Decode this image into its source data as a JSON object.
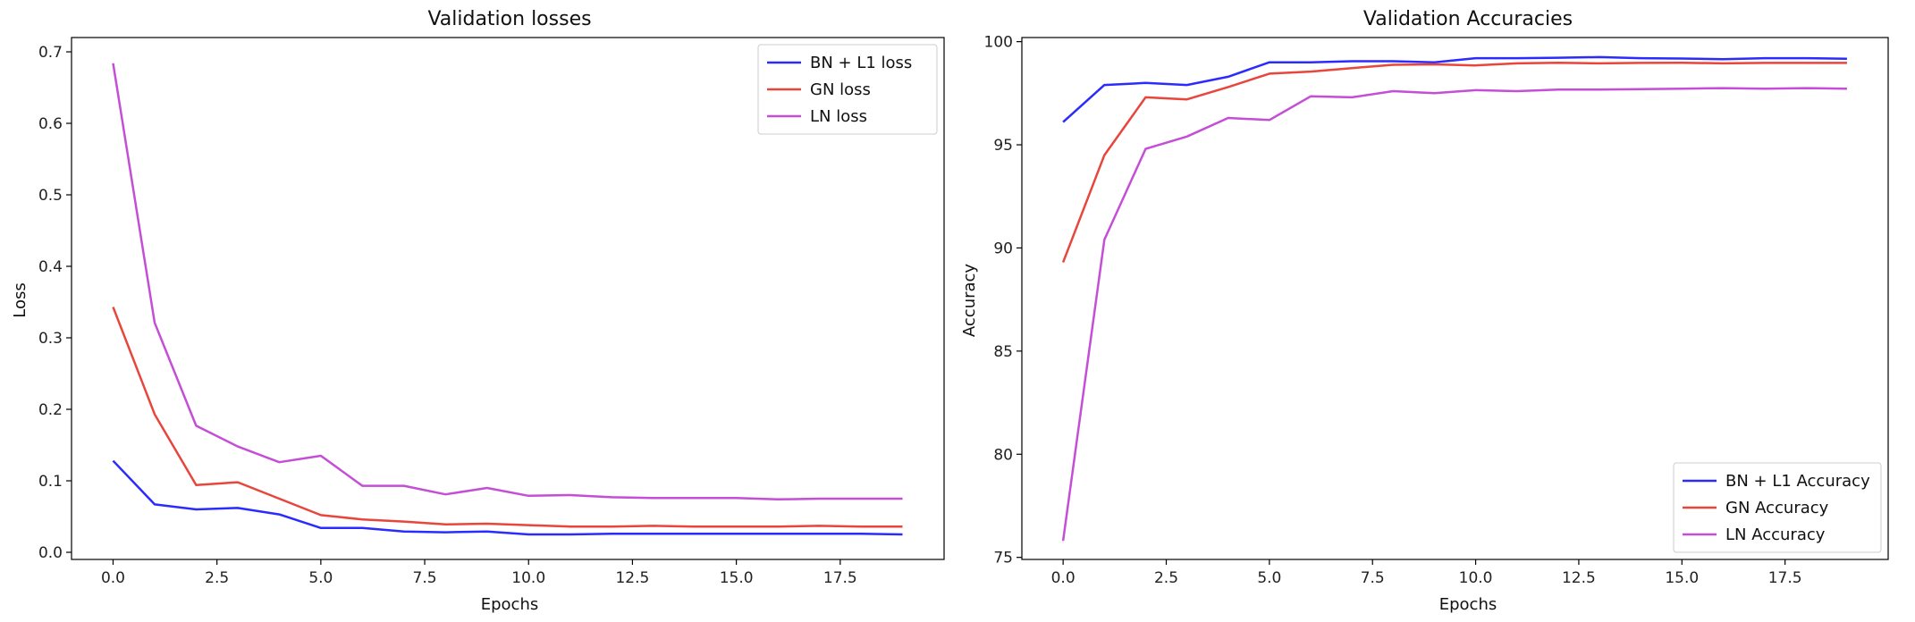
{
  "chart_data": [
    {
      "type": "line",
      "title": "Validation losses",
      "xlabel": "Epochs",
      "ylabel": "Loss",
      "xlim": [
        -1,
        20
      ],
      "ylim": [
        -0.01,
        0.72
      ],
      "xticks": [
        0,
        2.5,
        5,
        7.5,
        10,
        12.5,
        15,
        17.5
      ],
      "xtick_labels": [
        "0.0",
        "2.5",
        "5.0",
        "7.5",
        "10.0",
        "12.5",
        "15.0",
        "17.5"
      ],
      "yticks": [
        0.0,
        0.1,
        0.2,
        0.3,
        0.4,
        0.5,
        0.6,
        0.7
      ],
      "ytick_labels": [
        "0.0",
        "0.1",
        "0.2",
        "0.3",
        "0.4",
        "0.5",
        "0.6",
        "0.7"
      ],
      "legend_position": "top-right",
      "grid": false,
      "x": [
        0,
        1,
        2,
        3,
        4,
        5,
        6,
        7,
        8,
        9,
        10,
        11,
        12,
        13,
        14,
        15,
        16,
        17,
        18,
        19
      ],
      "series": [
        {
          "name": "BN + L1 loss",
          "color": "#2b2bff",
          "values": [
            0.128,
            0.067,
            0.06,
            0.062,
            0.053,
            0.034,
            0.034,
            0.029,
            0.028,
            0.029,
            0.025,
            0.025,
            0.026,
            0.026,
            0.026,
            0.026,
            0.026,
            0.026,
            0.026,
            0.025
          ]
        },
        {
          "name": "GN loss",
          "color": "#e8453c",
          "values": [
            0.343,
            0.193,
            0.094,
            0.098,
            0.075,
            0.052,
            0.046,
            0.043,
            0.039,
            0.04,
            0.038,
            0.036,
            0.036,
            0.037,
            0.036,
            0.036,
            0.036,
            0.037,
            0.036,
            0.036
          ]
        },
        {
          "name": "LN loss",
          "color": "#c44ed6",
          "values": [
            0.684,
            0.321,
            0.177,
            0.148,
            0.126,
            0.135,
            0.093,
            0.093,
            0.081,
            0.09,
            0.079,
            0.08,
            0.077,
            0.076,
            0.076,
            0.076,
            0.074,
            0.075,
            0.075,
            0.075
          ]
        }
      ]
    },
    {
      "type": "line",
      "title": "Validation Accuracies",
      "xlabel": "Epochs",
      "ylabel": "Accuracy",
      "xlim": [
        -1,
        20
      ],
      "ylim": [
        74.9,
        100.2
      ],
      "xticks": [
        0,
        2.5,
        5,
        7.5,
        10,
        12.5,
        15,
        17.5
      ],
      "xtick_labels": [
        "0.0",
        "2.5",
        "5.0",
        "7.5",
        "10.0",
        "12.5",
        "15.0",
        "17.5"
      ],
      "yticks": [
        75,
        80,
        85,
        90,
        95,
        100
      ],
      "ytick_labels": [
        "75",
        "80",
        "85",
        "90",
        "95",
        "100"
      ],
      "legend_position": "bottom-right",
      "grid": false,
      "x": [
        0,
        1,
        2,
        3,
        4,
        5,
        6,
        7,
        8,
        9,
        10,
        11,
        12,
        13,
        14,
        15,
        16,
        17,
        18,
        19
      ],
      "series": [
        {
          "name": "BN + L1 Accuracy",
          "color": "#2b2bff",
          "values": [
            96.1,
            97.9,
            98.0,
            97.9,
            98.3,
            99.0,
            99.0,
            99.05,
            99.05,
            99.0,
            99.2,
            99.2,
            99.22,
            99.25,
            99.2,
            99.18,
            99.15,
            99.2,
            99.2,
            99.17
          ]
        },
        {
          "name": "GN Accuracy",
          "color": "#e8453c",
          "values": [
            89.3,
            94.5,
            97.3,
            97.2,
            97.8,
            98.45,
            98.55,
            98.72,
            98.88,
            98.9,
            98.85,
            98.95,
            98.98,
            98.95,
            98.97,
            98.98,
            98.95,
            98.97,
            98.97,
            98.97
          ]
        },
        {
          "name": "LN Accuracy",
          "color": "#c44ed6",
          "values": [
            75.8,
            90.4,
            94.8,
            95.4,
            96.3,
            96.2,
            97.35,
            97.3,
            97.6,
            97.5,
            97.65,
            97.6,
            97.68,
            97.68,
            97.7,
            97.72,
            97.75,
            97.72,
            97.75,
            97.72
          ]
        }
      ]
    }
  ]
}
